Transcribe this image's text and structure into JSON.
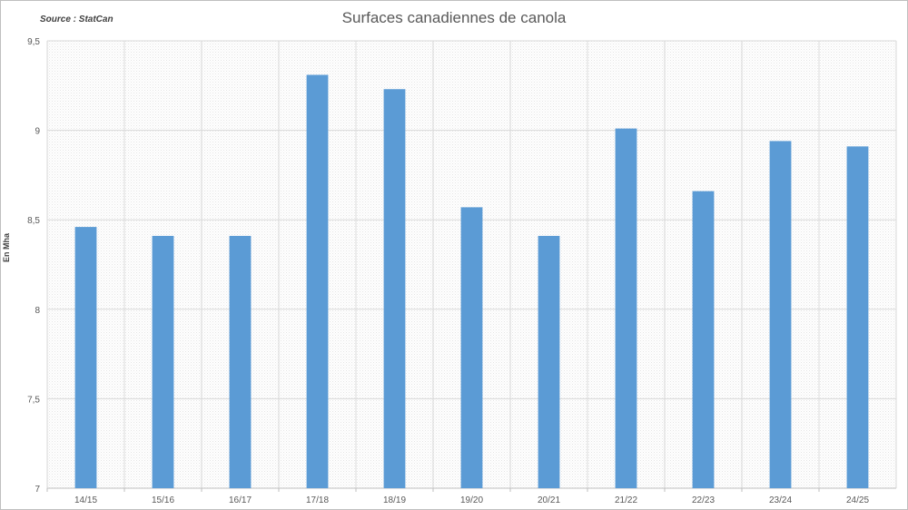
{
  "source_note": "Source : StatCan",
  "chart_data": {
    "type": "bar",
    "title": "Surfaces canadiennes de canola",
    "xlabel": "",
    "ylabel": "En Mha",
    "categories": [
      "14/15",
      "15/16",
      "16/17",
      "17/18",
      "18/19",
      "19/20",
      "20/21",
      "21/22",
      "22/23",
      "23/24",
      "24/25"
    ],
    "values": [
      8.46,
      8.41,
      8.41,
      9.31,
      9.23,
      8.57,
      8.41,
      9.01,
      8.66,
      8.94,
      8.91
    ],
    "ylim": [
      7,
      9.5
    ],
    "yticks": [
      "7",
      "7,5",
      "8",
      "8,5",
      "9",
      "9,5"
    ],
    "ytick_values": [
      7,
      7.5,
      8,
      8.5,
      9,
      9.5
    ],
    "grid": true,
    "bar_color": "#5b9bd5"
  }
}
